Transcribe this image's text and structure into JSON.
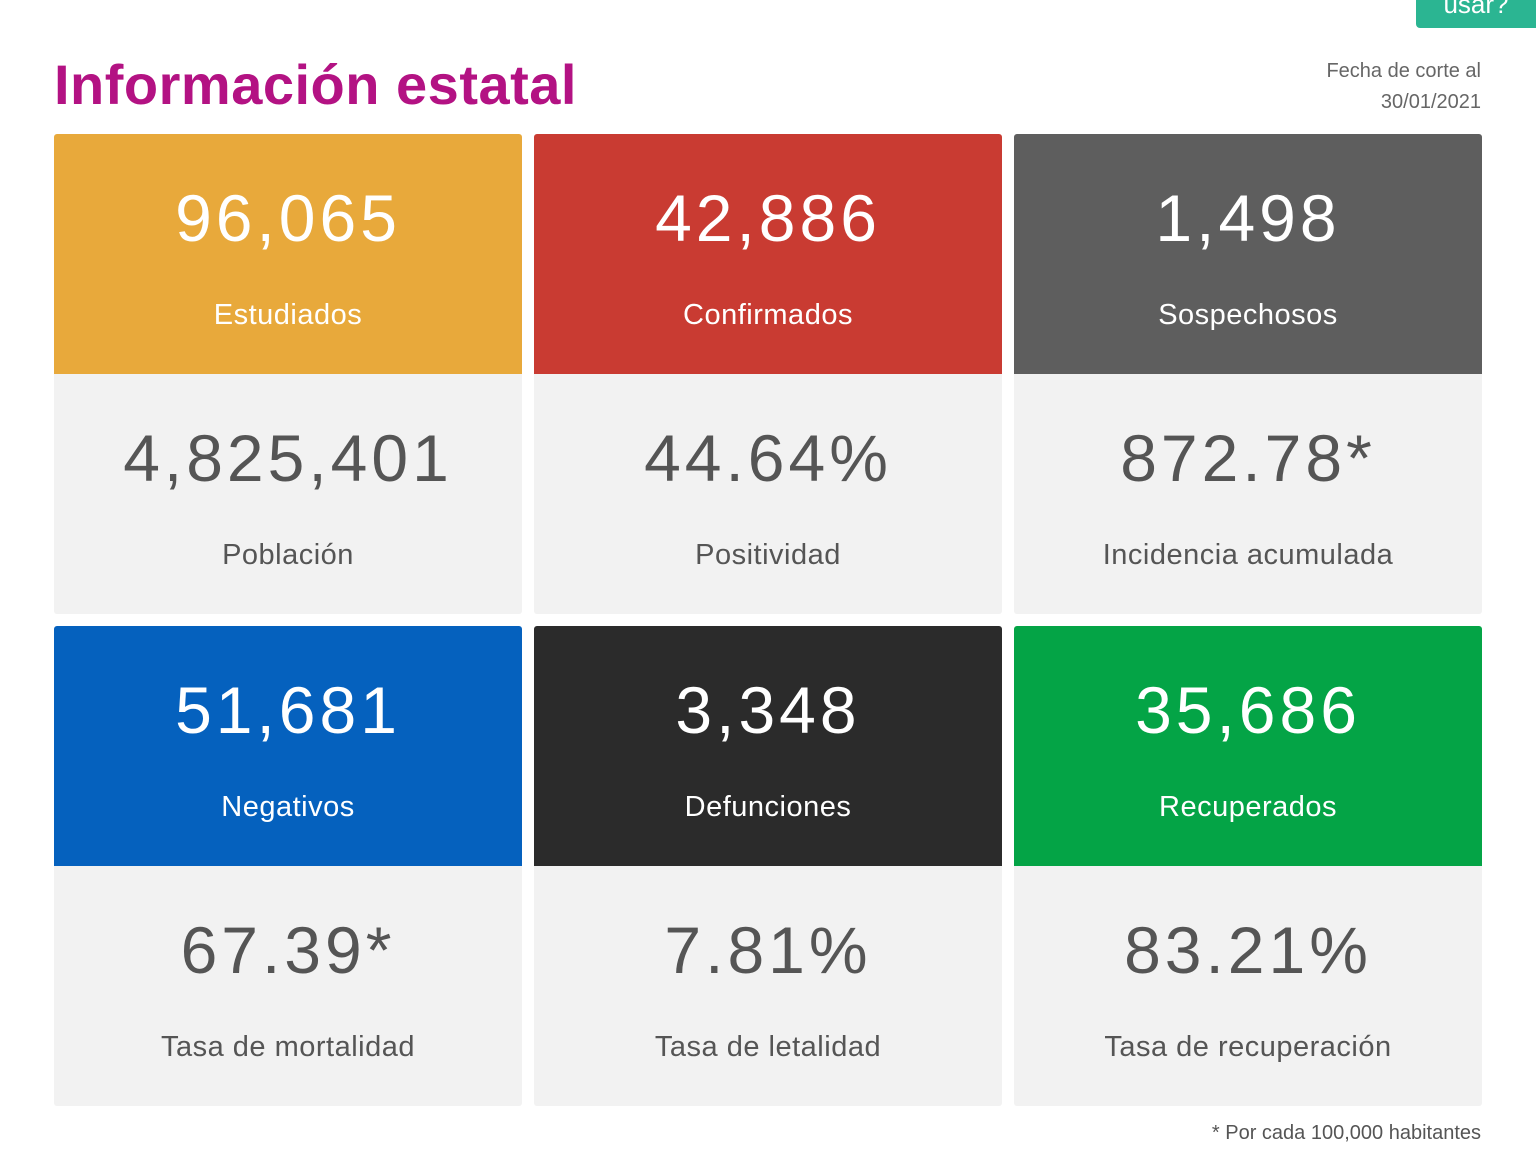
{
  "button": {
    "label": "usar?"
  },
  "header": {
    "title": "Información estatal",
    "date_line1": "Fecha de corte al",
    "date_line2": "30/01/2021"
  },
  "cards": [
    {
      "value": "96,065",
      "label": "Estudiados",
      "color": "#e8a93b"
    },
    {
      "value": "42,886",
      "label": "Confirmados",
      "color": "#c93b32"
    },
    {
      "value": "1,498",
      "label": "Sospechosos",
      "color": "#5e5e5e"
    },
    {
      "value": "4,825,401",
      "label": "Población"
    },
    {
      "value": "44.64%",
      "label": "Positividad"
    },
    {
      "value": "872.78*",
      "label": "Incidencia acumulada"
    },
    {
      "value": "51,681",
      "label": "Negativos",
      "color": "#0561be"
    },
    {
      "value": "3,348",
      "label": "Defunciones",
      "color": "#2b2b2b"
    },
    {
      "value": "35,686",
      "label": "Recuperados",
      "color": "#04a446"
    },
    {
      "value": "67.39*",
      "label": "Tasa de mortalidad"
    },
    {
      "value": "7.81%",
      "label": "Tasa de letalidad"
    },
    {
      "value": "83.21%",
      "label": "Tasa de recuperación"
    }
  ],
  "footnote": "* Por cada 100,000 habitantes"
}
